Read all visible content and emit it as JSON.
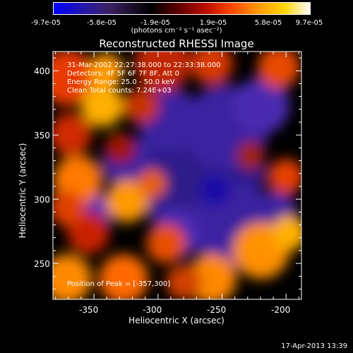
{
  "colorbar": {
    "ticks": [
      "-9.7e-05",
      "-5.8e-05",
      "-1.9e-05",
      "1.9e-05",
      "5.8e-05",
      "9.7e-05"
    ],
    "units": "(photons cm⁻² s⁻¹ asec⁻²)",
    "colors": [
      "#0000ff",
      "#2a1a9a",
      "#000000",
      "#c01000",
      "#ff9a00",
      "#ffffff"
    ]
  },
  "chart_data": {
    "type": "heatmap",
    "title": "Reconstructed RHESSI Image",
    "xlabel": "Heliocentric X (arcsec)",
    "ylabel": "Heliocentric Y (arcsec)",
    "xlim": [
      -382,
      -188
    ],
    "ylim": [
      222,
      415
    ],
    "x_ticks": [
      "-350",
      "-300",
      "-250",
      "-200"
    ],
    "y_ticks": [
      "250",
      "300",
      "350",
      "400"
    ],
    "x_tick_values": [
      -350,
      -300,
      -250,
      -200
    ],
    "y_tick_values": [
      250,
      300,
      350,
      400
    ],
    "annotations": [
      "31-Mar-2002 22:27:38.000 to 22:33:38.000",
      "Detectors: 4F 5F 6F 7F 8F, Att 0",
      "Energy Range: 25.0 - 50.0 keV",
      "Clean    Total counts: 7.24E+03"
    ],
    "peak_label": "Position of Peak = [-357,300]",
    "peak": [
      -357,
      300
    ],
    "value_range": [
      -9.7e-05,
      9.7e-05
    ]
  },
  "footer": {
    "date": "17-Apr-2013 13:39"
  }
}
